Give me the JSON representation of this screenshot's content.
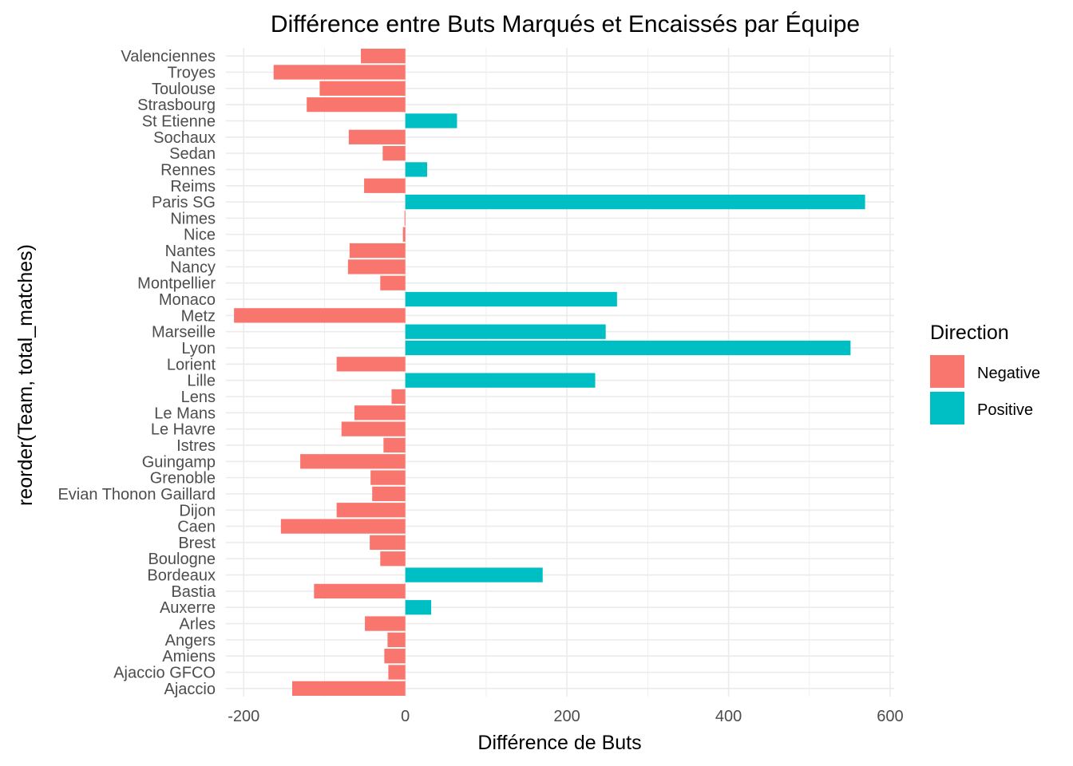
{
  "chart_data": {
    "type": "bar",
    "orientation": "horizontal",
    "title": "Différence entre Buts Marqués et Encaissés par Équipe",
    "xlabel": "Différence de Buts",
    "ylabel": "reorder(Team, total_matches)",
    "xlim": [
      -210,
      600
    ],
    "xticks": [
      -200,
      0,
      200,
      400,
      600
    ],
    "xtick_labels": [
      "-200",
      "0",
      "200",
      "400",
      "600"
    ],
    "grid": true,
    "legend": {
      "title": "Direction",
      "position": "right",
      "entries": [
        {
          "label": "Negative",
          "color": "#F8766D"
        },
        {
          "label": "Positive",
          "color": "#00BFC4"
        }
      ]
    },
    "categories": [
      "Valenciennes",
      "Troyes",
      "Toulouse",
      "Strasbourg",
      "St Etienne",
      "Sochaux",
      "Sedan",
      "Rennes",
      "Reims",
      "Paris SG",
      "Nimes",
      "Nice",
      "Nantes",
      "Nancy",
      "Montpellier",
      "Monaco",
      "Metz",
      "Marseille",
      "Lyon",
      "Lorient",
      "Lille",
      "Lens",
      "Le Mans",
      "Le Havre",
      "Istres",
      "Guingamp",
      "Grenoble",
      "Evian Thonon Gaillard",
      "Dijon",
      "Caen",
      "Brest",
      "Boulogne",
      "Bordeaux",
      "Bastia",
      "Auxerre",
      "Arles",
      "Angers",
      "Amiens",
      "Ajaccio GFCO",
      "Ajaccio"
    ],
    "values": [
      -55,
      -163,
      -106,
      -122,
      64,
      -70,
      -28,
      27,
      -51,
      569,
      -1,
      -3,
      -69,
      -71,
      -31,
      262,
      -212,
      248,
      551,
      -85,
      235,
      -17,
      -63,
      -79,
      -27,
      -130,
      -43,
      -41,
      -85,
      -154,
      -44,
      -31,
      170,
      -113,
      32,
      -50,
      -22,
      -26,
      -21,
      -140
    ],
    "direction": [
      "Negative",
      "Negative",
      "Negative",
      "Negative",
      "Positive",
      "Negative",
      "Negative",
      "Positive",
      "Negative",
      "Positive",
      "Negative",
      "Negative",
      "Negative",
      "Negative",
      "Negative",
      "Positive",
      "Negative",
      "Positive",
      "Positive",
      "Negative",
      "Positive",
      "Negative",
      "Negative",
      "Negative",
      "Negative",
      "Negative",
      "Negative",
      "Negative",
      "Negative",
      "Negative",
      "Negative",
      "Negative",
      "Positive",
      "Negative",
      "Positive",
      "Negative",
      "Negative",
      "Negative",
      "Negative",
      "Negative"
    ]
  }
}
